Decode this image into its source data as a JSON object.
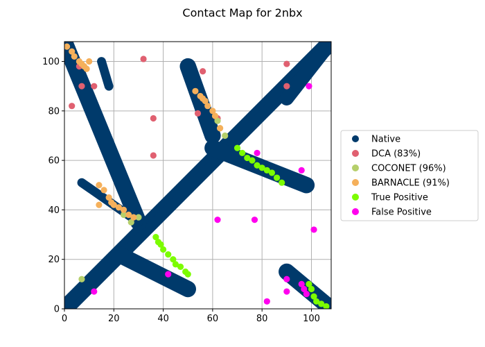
{
  "chart_data": {
    "type": "scatter",
    "title": "Contact Map for 2nbx",
    "xlabel": "",
    "ylabel": "",
    "xlim": [
      0,
      108
    ],
    "ylim": [
      0,
      108
    ],
    "xticks": [
      0,
      20,
      40,
      60,
      80,
      100
    ],
    "yticks": [
      0,
      20,
      40,
      60,
      80,
      100
    ],
    "grid": true,
    "legend_position": "right",
    "series": [
      {
        "name": "Native",
        "color": "#003a6b",
        "segments": [
          {
            "from": [
              0,
              0
            ],
            "to": [
              108,
              108
            ],
            "width": 3
          },
          {
            "from": [
              0,
              3
            ],
            "to": [
              105,
              108
            ],
            "width": 1
          },
          {
            "from": [
              3,
              0
            ],
            "to": [
              108,
              105
            ],
            "width": 1
          },
          {
            "from": [
              0,
              108
            ],
            "to": [
              30,
              35
            ],
            "width": 5
          },
          {
            "from": [
              22,
              22
            ],
            "to": [
              50,
              8
            ],
            "width": 5
          },
          {
            "from": [
              50,
              98
            ],
            "to": [
              60,
              70
            ],
            "width": 5
          },
          {
            "from": [
              60,
              65
            ],
            "to": [
              98,
              50
            ],
            "width": 5
          },
          {
            "from": [
              90,
              85
            ],
            "to": [
              108,
              108
            ],
            "width": 4
          },
          {
            "from": [
              90,
              15
            ],
            "to": [
              108,
              0
            ],
            "width": 5
          },
          {
            "from": [
              7,
              51
            ],
            "to": [
              30,
              35
            ],
            "width": 2
          },
          {
            "from": [
              15,
              100
            ],
            "to": [
              18,
              90
            ],
            "width": 2
          }
        ]
      },
      {
        "name": "DCA (83%)",
        "color": "#e06070",
        "points": [
          [
            3,
            82
          ],
          [
            6,
            98
          ],
          [
            7,
            90
          ],
          [
            12,
            90
          ],
          [
            32,
            101
          ],
          [
            36,
            77
          ],
          [
            36,
            62
          ],
          [
            54,
            79
          ],
          [
            56,
            96
          ],
          [
            62,
            77
          ],
          [
            90,
            99
          ],
          [
            90,
            90
          ]
        ]
      },
      {
        "name": "COCONET (96%)",
        "color": "#b5cf6b",
        "points": [
          [
            7,
            12
          ],
          [
            24,
            38
          ],
          [
            27,
            35
          ],
          [
            30,
            37
          ],
          [
            62,
            76
          ],
          [
            63,
            73
          ],
          [
            65,
            70
          ]
        ]
      },
      {
        "name": "BARNACLE (91%)",
        "color": "#f5b05b",
        "points": [
          [
            1,
            106
          ],
          [
            3,
            104
          ],
          [
            4,
            102
          ],
          [
            6,
            100
          ],
          [
            7,
            99
          ],
          [
            8,
            98
          ],
          [
            9,
            97
          ],
          [
            10,
            100
          ],
          [
            14,
            42
          ],
          [
            14,
            50
          ],
          [
            16,
            48
          ],
          [
            18,
            45
          ],
          [
            19,
            43
          ],
          [
            20,
            42
          ],
          [
            22,
            41
          ],
          [
            24,
            40
          ],
          [
            26,
            38
          ],
          [
            28,
            37
          ],
          [
            53,
            88
          ],
          [
            55,
            86
          ],
          [
            56,
            85
          ],
          [
            57,
            84
          ],
          [
            58,
            82
          ],
          [
            60,
            80
          ],
          [
            61,
            78
          ],
          [
            63,
            73
          ]
        ]
      },
      {
        "name": "True Positive",
        "color": "#7cfc00",
        "points": [
          [
            37,
            29
          ],
          [
            38,
            27
          ],
          [
            39,
            26
          ],
          [
            40,
            24
          ],
          [
            42,
            22
          ],
          [
            44,
            20
          ],
          [
            45,
            18
          ],
          [
            47,
            17
          ],
          [
            49,
            15
          ],
          [
            50,
            14
          ],
          [
            70,
            65
          ],
          [
            72,
            63
          ],
          [
            74,
            61
          ],
          [
            76,
            60
          ],
          [
            78,
            58
          ],
          [
            80,
            57
          ],
          [
            82,
            56
          ],
          [
            84,
            55
          ],
          [
            86,
            53
          ],
          [
            88,
            51
          ],
          [
            99,
            10
          ],
          [
            100,
            8
          ],
          [
            101,
            5
          ],
          [
            102,
            3
          ],
          [
            104,
            2
          ],
          [
            106,
            1
          ]
        ]
      },
      {
        "name": "False Positive",
        "color": "#ff00ee",
        "points": [
          [
            12,
            7
          ],
          [
            42,
            14
          ],
          [
            62,
            36
          ],
          [
            77,
            36
          ],
          [
            78,
            63
          ],
          [
            82,
            3
          ],
          [
            90,
            12
          ],
          [
            90,
            7
          ],
          [
            96,
            56
          ],
          [
            96,
            10
          ],
          [
            97,
            8
          ],
          [
            98,
            6
          ],
          [
            99,
            90
          ],
          [
            101,
            32
          ]
        ]
      }
    ]
  }
}
